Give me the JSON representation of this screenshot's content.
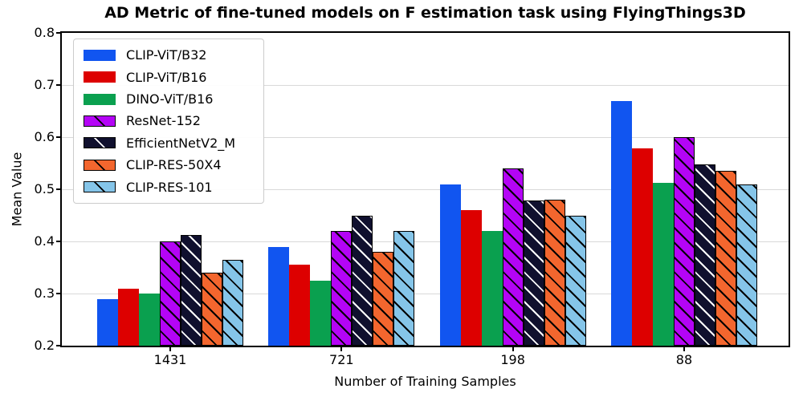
{
  "chart_data": {
    "type": "bar",
    "title": "AD Metric of fine-tuned models on F estimation task using FlyingThings3D",
    "xlabel": "Number of Training Samples",
    "ylabel": "Mean Value",
    "categories": [
      "1431",
      "721",
      "198",
      "88"
    ],
    "series": [
      {
        "name": "CLIP-ViT/B32",
        "color": "#1155f0",
        "hatch": false,
        "hatch_color": null,
        "values": [
          0.29,
          0.39,
          0.51,
          0.67
        ]
      },
      {
        "name": "CLIP-ViT/B16",
        "color": "#dd0000",
        "hatch": false,
        "hatch_color": null,
        "values": [
          0.31,
          0.355,
          0.46,
          0.578
        ]
      },
      {
        "name": "DINO-ViT/B16",
        "color": "#0aa04f",
        "hatch": false,
        "hatch_color": null,
        "values": [
          0.3,
          0.325,
          0.42,
          0.512
        ]
      },
      {
        "name": "ResNet-152",
        "color": "#b404f6",
        "hatch": true,
        "hatch_color": "#000000",
        "values": [
          0.4,
          0.42,
          0.54,
          0.6
        ]
      },
      {
        "name": "EfficientNetV2_M",
        "color": "#10102e",
        "hatch": true,
        "hatch_color": "#ffffff",
        "values": [
          0.413,
          0.45,
          0.478,
          0.548
        ]
      },
      {
        "name": "CLIP-RES-50X4",
        "color": "#f3662e",
        "hatch": true,
        "hatch_color": "#000000",
        "values": [
          0.34,
          0.38,
          0.48,
          0.535
        ]
      },
      {
        "name": "CLIP-RES-101",
        "color": "#85c5e9",
        "hatch": true,
        "hatch_color": "#000000",
        "values": [
          0.365,
          0.42,
          0.45,
          0.51
        ]
      }
    ],
    "ylim": [
      0.2,
      0.8
    ],
    "yticks": [
      0.2,
      0.3,
      0.4,
      0.5,
      0.6,
      0.7,
      0.8
    ],
    "grid": true,
    "legend_position": "upper left",
    "colors": {
      "grid": "#d9d9d9",
      "spine": "#000000",
      "bar_edge": "#000000",
      "background": "#ffffff",
      "text": "#000000"
    }
  }
}
